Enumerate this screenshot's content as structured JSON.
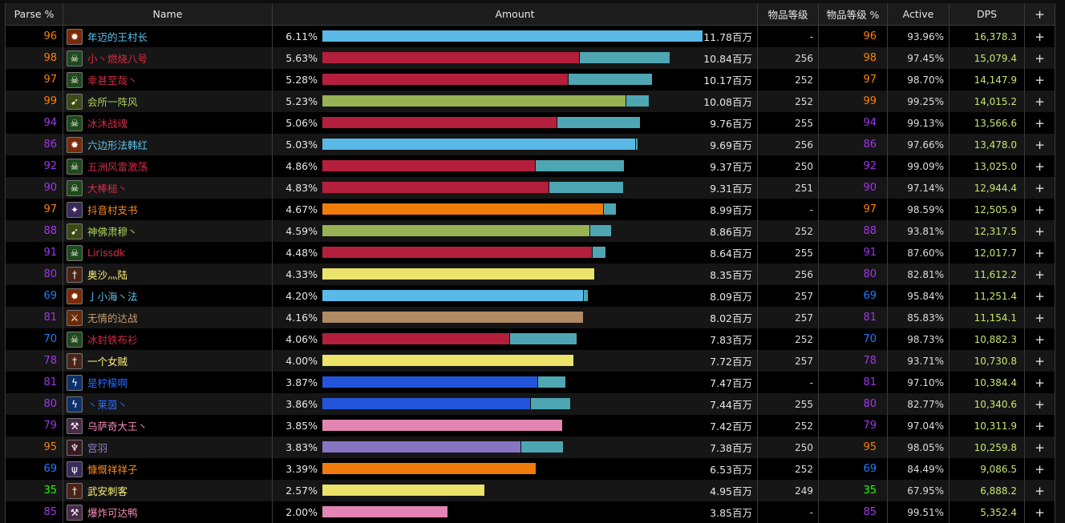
{
  "header": {
    "parse": "Parse %",
    "name": "Name",
    "amount": "Amount",
    "ilvl": "物品等级",
    "ilvl_pct": "物品等级 %",
    "active": "Active",
    "dps": "DPS",
    "expand": "+"
  },
  "colors": {
    "legendary": "#e5a33a",
    "epic": "#a335ee",
    "rare": "#1e7dff",
    "uncommon": "#1eff00",
    "orange_parse": "#ff8000",
    "dps_text": "#c8e66e"
  },
  "rows": [
    {
      "parse": "96",
      "name": "年迈的王村长",
      "class": "mage",
      "icon": "fire-icon",
      "pct": "6.11%",
      "amount": "11.78百万",
      "ilvl": "-",
      "ilvl_pct": "96",
      "active": "93.96%",
      "dps": "16,378.3",
      "plus": "+",
      "share": 1.0,
      "pet": 0.0
    },
    {
      "parse": "98",
      "name": "小丶燃烧八号",
      "class": "deathknight",
      "icon": "skull-icon",
      "pct": "5.63%",
      "amount": "10.84百万",
      "ilvl": "256",
      "ilvl_pct": "98",
      "active": "97.45%",
      "dps": "15,079.4",
      "plus": "+",
      "share": 0.676,
      "pet": 0.236
    },
    {
      "parse": "97",
      "name": "幸甚至哉丶",
      "class": "deathknight",
      "icon": "skull-icon",
      "pct": "5.28%",
      "amount": "10.17百万",
      "ilvl": "252",
      "ilvl_pct": "97",
      "active": "98.70%",
      "dps": "14,147.9",
      "plus": "+",
      "share": 0.646,
      "pet": 0.219
    },
    {
      "parse": "99",
      "name": "会所一阵风",
      "class": "hunter",
      "icon": "arrow-icon",
      "pct": "5.23%",
      "amount": "10.08百万",
      "ilvl": "252",
      "ilvl_pct": "99",
      "active": "99.25%",
      "dps": "14,015.2",
      "plus": "+",
      "share": 0.797,
      "pet": 0.06
    },
    {
      "parse": "94",
      "name": "冰沐战魂",
      "class": "deathknight",
      "icon": "skull-icon",
      "pct": "5.06%",
      "amount": "9.76百万",
      "ilvl": "255",
      "ilvl_pct": "94",
      "active": "99.13%",
      "dps": "13,566.6",
      "plus": "+",
      "share": 0.616,
      "pet": 0.218
    },
    {
      "parse": "86",
      "name": "六边形法韩红",
      "class": "mage",
      "icon": "fire-icon",
      "pct": "5.03%",
      "amount": "9.69百万",
      "ilvl": "256",
      "ilvl_pct": "86",
      "active": "97.66%",
      "dps": "13,478.0",
      "plus": "+",
      "share": 0.822,
      "pet": 0.005
    },
    {
      "parse": "92",
      "name": "五洲风雷激荡",
      "class": "deathknight",
      "icon": "skull-icon",
      "pct": "4.86%",
      "amount": "9.37百万",
      "ilvl": "250",
      "ilvl_pct": "92",
      "active": "99.09%",
      "dps": "13,025.0",
      "plus": "+",
      "share": 0.56,
      "pet": 0.233
    },
    {
      "parse": "90",
      "name": "大棒槌丶",
      "class": "deathknight",
      "icon": "skull-icon",
      "pct": "4.83%",
      "amount": "9.31百万",
      "ilvl": "251",
      "ilvl_pct": "90",
      "active": "97.14%",
      "dps": "12,944.4",
      "plus": "+",
      "share": 0.594,
      "pet": 0.195
    },
    {
      "parse": "97",
      "name": "抖音村支书",
      "class": "druid",
      "icon": "star-icon",
      "pct": "4.67%",
      "amount": "8.99百万",
      "ilvl": "-",
      "ilvl_pct": "97",
      "active": "98.59%",
      "dps": "12,505.9",
      "plus": "+",
      "share": 0.739,
      "pet": 0.032
    },
    {
      "parse": "88",
      "name": "神佛肃穆丶",
      "class": "hunter",
      "icon": "arrow-icon",
      "pct": "4.59%",
      "amount": "8.86百万",
      "ilvl": "252",
      "ilvl_pct": "88",
      "active": "93.81%",
      "dps": "12,317.5",
      "plus": "+",
      "share": 0.703,
      "pet": 0.055
    },
    {
      "parse": "91",
      "name": "Lirissdk",
      "class": "deathknight",
      "icon": "skull-icon",
      "pct": "4.48%",
      "amount": "8.64百万",
      "ilvl": "255",
      "ilvl_pct": "91",
      "active": "87.60%",
      "dps": "12,017.7",
      "plus": "+",
      "share": 0.708,
      "pet": 0.034
    },
    {
      "parse": "80",
      "name": "奥沙灬陆",
      "class": "rogue",
      "icon": "dagger-icon",
      "pct": "4.33%",
      "amount": "8.35百万",
      "ilvl": "256",
      "ilvl_pct": "80",
      "active": "82.81%",
      "dps": "11,612.2",
      "plus": "+",
      "share": 0.716,
      "pet": 0.0
    },
    {
      "parse": "69",
      "name": "亅小海丶法",
      "class": "mage",
      "icon": "fire-icon",
      "pct": "4.20%",
      "amount": "8.09百万",
      "ilvl": "257",
      "ilvl_pct": "69",
      "active": "95.84%",
      "dps": "11,251.4",
      "plus": "+",
      "share": 0.686,
      "pet": 0.011
    },
    {
      "parse": "81",
      "name": "无情的达战",
      "class": "warrior",
      "icon": "sword-icon",
      "pct": "4.16%",
      "amount": "8.02百万",
      "ilvl": "257",
      "ilvl_pct": "81",
      "active": "85.83%",
      "dps": "11,154.1",
      "plus": "+",
      "share": 0.686,
      "pet": 0.0
    },
    {
      "parse": "70",
      "name": "冰封铁布衫",
      "class": "deathknight",
      "icon": "skull-icon",
      "pct": "4.06%",
      "amount": "7.83百万",
      "ilvl": "252",
      "ilvl_pct": "70",
      "active": "98.73%",
      "dps": "10,882.3",
      "plus": "+",
      "share": 0.491,
      "pet": 0.176
    },
    {
      "parse": "78",
      "name": "一个女贼",
      "class": "rogue",
      "icon": "dagger-icon",
      "pct": "4.00%",
      "amount": "7.72百万",
      "ilvl": "257",
      "ilvl_pct": "78",
      "active": "93.71%",
      "dps": "10,730.8",
      "plus": "+",
      "share": 0.66,
      "pet": 0.0
    },
    {
      "parse": "81",
      "name": "是柠檬啊",
      "class": "shaman",
      "icon": "lightning-icon",
      "pct": "3.87%",
      "amount": "7.47百万",
      "ilvl": "-",
      "ilvl_pct": "81",
      "active": "97.10%",
      "dps": "10,384.4",
      "plus": "+",
      "share": 0.566,
      "pet": 0.072
    },
    {
      "parse": "80",
      "name": "丶莱茵丶",
      "class": "shaman",
      "icon": "lightning-icon",
      "pct": "3.86%",
      "amount": "7.44百万",
      "ilvl": "255",
      "ilvl_pct": "80",
      "active": "82.77%",
      "dps": "10,340.6",
      "plus": "+",
      "share": 0.547,
      "pet": 0.104
    },
    {
      "parse": "79",
      "name": "乌萨奇大王丶",
      "class": "paladin",
      "icon": "hammer-icon",
      "pct": "3.85%",
      "amount": "7.42百万",
      "ilvl": "252",
      "ilvl_pct": "79",
      "active": "97.04%",
      "dps": "10,311.9",
      "plus": "+",
      "share": 0.63,
      "pet": 0.0
    },
    {
      "parse": "95",
      "name": "宫羽",
      "class": "warlock",
      "icon": "demon-icon",
      "pct": "3.83%",
      "amount": "7.38百万",
      "ilvl": "250",
      "ilvl_pct": "95",
      "active": "98.05%",
      "dps": "10,259.8",
      "plus": "+",
      "share": 0.521,
      "pet": 0.11
    },
    {
      "parse": "69",
      "name": "慷慨祥祥子",
      "class": "druid",
      "icon": "claw-icon",
      "pct": "3.39%",
      "amount": "6.53百万",
      "ilvl": "252",
      "ilvl_pct": "69",
      "active": "84.49%",
      "dps": "9,086.5",
      "plus": "+",
      "share": 0.562,
      "pet": 0.0
    },
    {
      "parse": "35",
      "name": "武安刺客",
      "class": "rogue",
      "icon": "dagger-icon",
      "pct": "2.57%",
      "amount": "4.95百万",
      "ilvl": "249",
      "ilvl_pct": "35",
      "active": "67.95%",
      "dps": "6,888.2",
      "plus": "+",
      "share": 0.427,
      "pet": 0.0
    },
    {
      "parse": "85",
      "name": "爆炸可达鸭",
      "class": "paladin",
      "icon": "hammer-icon",
      "pct": "2.00%",
      "amount": "3.85百万",
      "ilvl": "-",
      "ilvl_pct": "85",
      "active": "99.51%",
      "dps": "5,352.4",
      "plus": "+",
      "share": 0.33,
      "pet": 0.0
    }
  ]
}
